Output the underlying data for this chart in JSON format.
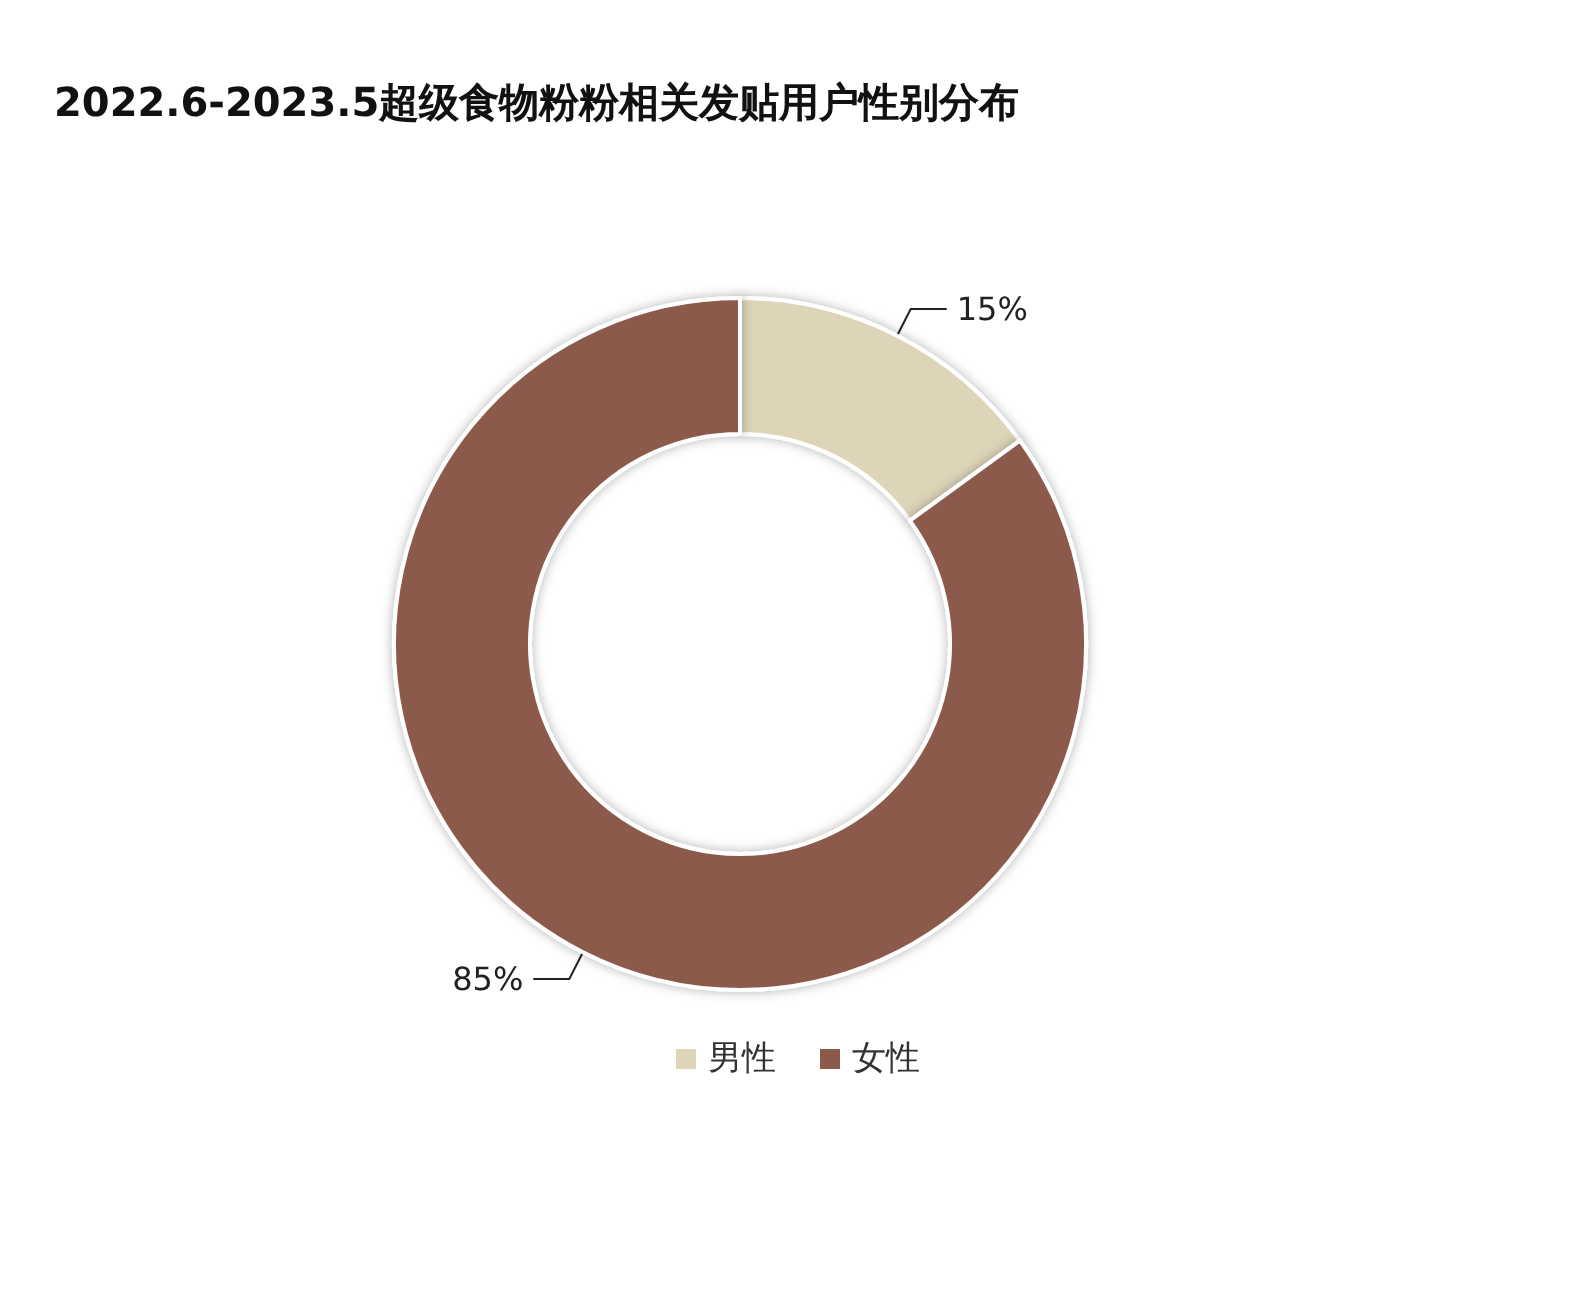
{
  "chart_data": {
    "type": "donut",
    "title": "2022.6-2023.5超级食物粉粉相关发贴用户性别分布",
    "categories": [
      "男性",
      "女性"
    ],
    "values": [
      15,
      85
    ],
    "colors": [
      "#ded5b8",
      "#8b5a4b"
    ],
    "value_labels": [
      "15%",
      "85%"
    ],
    "legend": "bottom"
  }
}
